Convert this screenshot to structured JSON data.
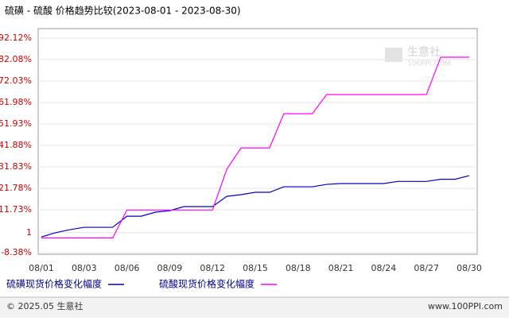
{
  "chart_data": {
    "type": "line",
    "title": "硫磺 - 硫酸 价格趋势比较(2023-08-01 - 2023-08-30)",
    "categories": [
      "08/01",
      null,
      null,
      "08/03",
      null,
      null,
      "08/06",
      null,
      null,
      "08/09",
      null,
      null,
      "08/12",
      null,
      null,
      "08/15",
      null,
      null,
      "08/18",
      null,
      null,
      "08/21",
      null,
      null,
      "08/24",
      null,
      null,
      "08/27",
      null,
      null,
      "08/30"
    ],
    "series": [
      {
        "name": "硫磺现货价格变化幅度",
        "color": "#0000cc",
        "values": [
          -1,
          1,
          2.4,
          3.5,
          3.5,
          3.5,
          8.7,
          8.7,
          10.6,
          11.3,
          13.2,
          13.2,
          13.2,
          18.0,
          18.8,
          19.9,
          19.9,
          22.5,
          22.5,
          22.5,
          23.6,
          24.0,
          24.0,
          24.0,
          24.0,
          25.0,
          25.0,
          25.0,
          26.0,
          26.0,
          27.7
        ]
      },
      {
        "name": "硫酸现货价格变化幅度",
        "color": "#ff00ff",
        "values": [
          -1.5,
          -1.5,
          -1.5,
          -1.5,
          -1.5,
          -1.5,
          11.6,
          11.6,
          11.6,
          11.6,
          11.6,
          11.6,
          11.6,
          30.7,
          40.7,
          40.7,
          40.7,
          56.7,
          56.7,
          56.7,
          65.7,
          65.7,
          65.7,
          65.7,
          65.7,
          65.7,
          65.7,
          65.7,
          83.2,
          83.2,
          83.2
        ]
      }
    ],
    "ylim": [
      -8.38,
      92.12
    ],
    "yticks": [
      {
        "value": 92.12,
        "label": "92.12%"
      },
      {
        "value": 82.08,
        "label": "82.08%"
      },
      {
        "value": 72.03,
        "label": "72.03%"
      },
      {
        "value": 61.98,
        "label": "61.98%"
      },
      {
        "value": 51.93,
        "label": "51.93%"
      },
      {
        "value": 41.88,
        "label": "41.88%"
      },
      {
        "value": 31.83,
        "label": "31.83%"
      },
      {
        "value": 21.78,
        "label": "21.78%"
      },
      {
        "value": 11.73,
        "label": "11.73%"
      },
      1,
      {
        "value": -8.38,
        "label": "-8.38%"
      }
    ],
    "grid": true,
    "watermark": {
      "brand": "生意社",
      "site": "100PPI.COM"
    }
  },
  "footer": {
    "copyright": "© 2025.05 生意社",
    "site": "www.100PPI.com"
  }
}
